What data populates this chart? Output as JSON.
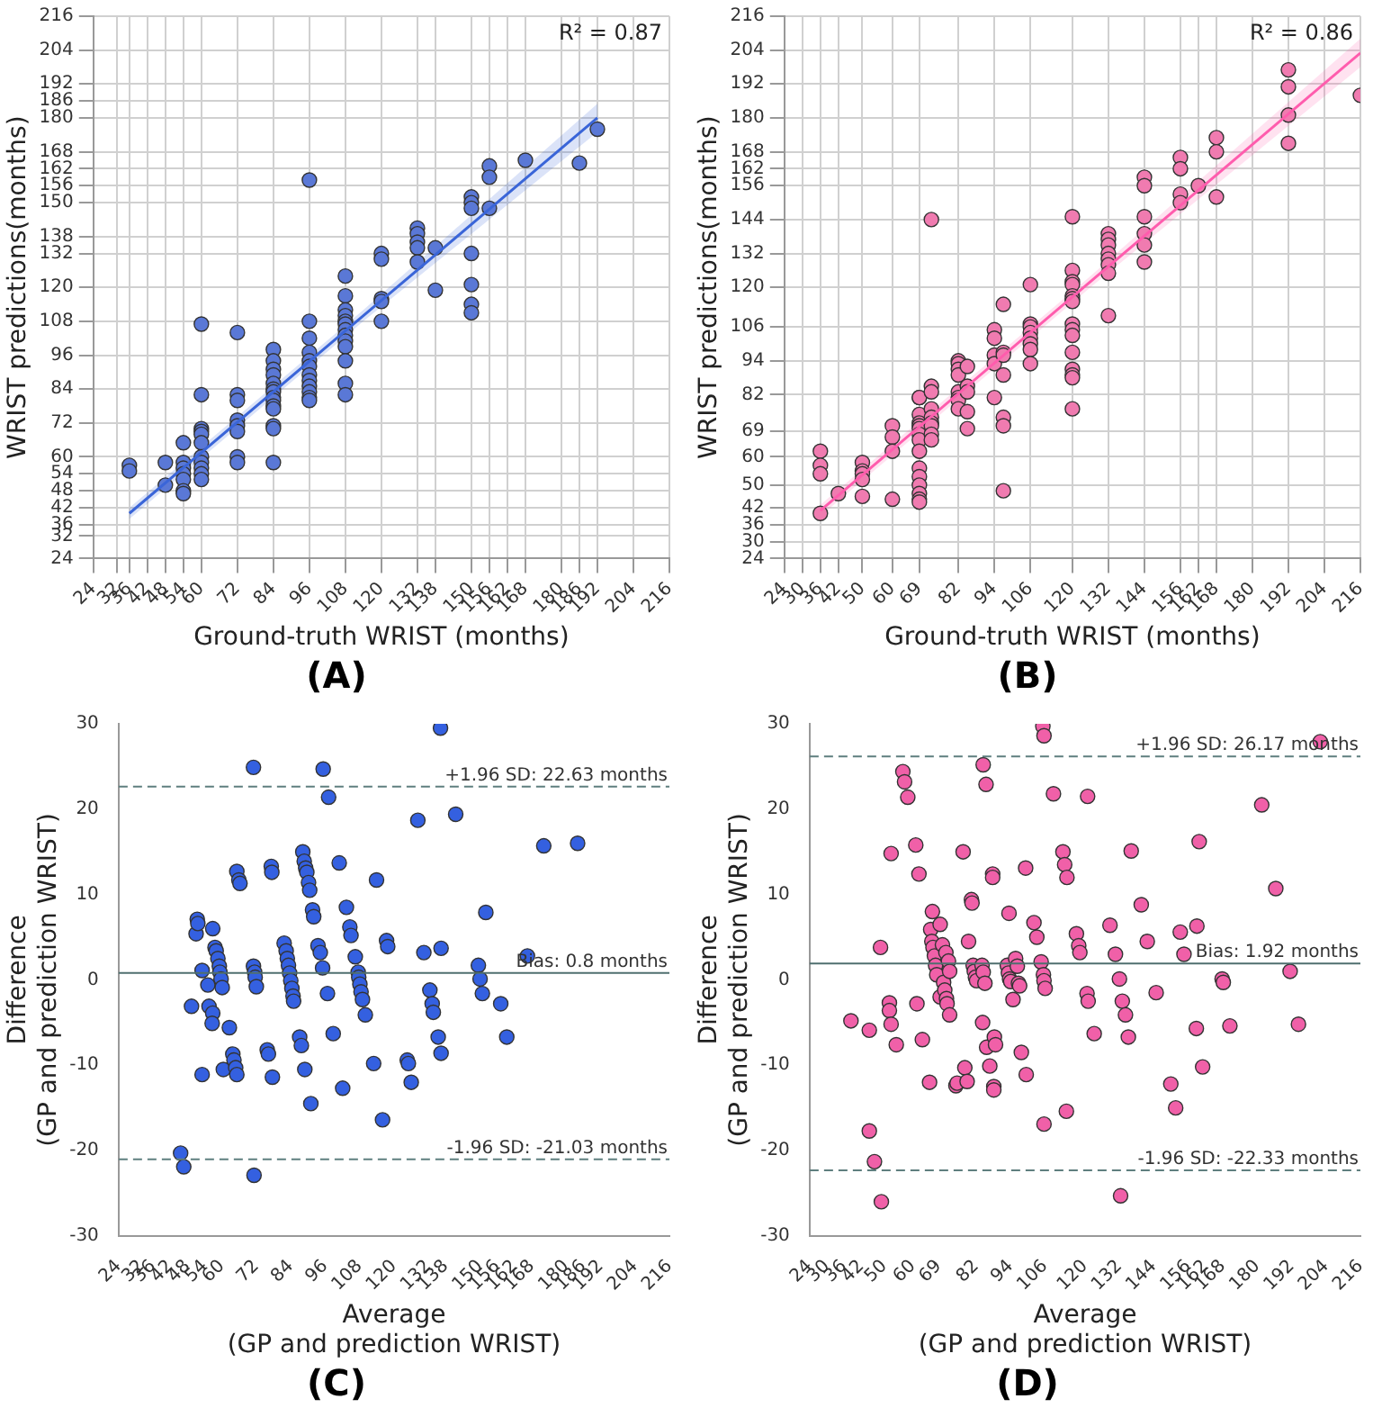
{
  "chart_data": [
    {
      "type": "scatter",
      "title": "(A)",
      "xlabel": "Ground-truth WRIST (months)",
      "ylabel": "WRIST predictions(months)",
      "annotations": [
        "R² = 0.87"
      ],
      "xlim": [
        24,
        216
      ],
      "ylim": [
        24,
        216
      ],
      "xticks": [
        24,
        32,
        36,
        42,
        48,
        54,
        60,
        72,
        84,
        96,
        108,
        120,
        132,
        138,
        150,
        156,
        162,
        168,
        180,
        186,
        192,
        204,
        216
      ],
      "yticks": [
        24,
        32,
        36,
        42,
        48,
        54,
        60,
        72,
        84,
        96,
        108,
        120,
        132,
        138,
        150,
        156,
        162,
        168,
        180,
        186,
        192,
        204,
        216
      ],
      "grid": true,
      "series": [
        {
          "marker": "circle",
          "color": "#5a78d6",
          "x": [
            36,
            36,
            48,
            48,
            54,
            54,
            54,
            54,
            54,
            54,
            54,
            60,
            60,
            60,
            60,
            60,
            60,
            60,
            60,
            60,
            60,
            60,
            72,
            72,
            72,
            72,
            72,
            72,
            72,
            72,
            84,
            84,
            84,
            84,
            84,
            84,
            84,
            84,
            84,
            84,
            84,
            84,
            84,
            84,
            96,
            96,
            96,
            96,
            96,
            96,
            96,
            96,
            96,
            96,
            96,
            96,
            108,
            108,
            108,
            108,
            108,
            108,
            108,
            108,
            108,
            108,
            108,
            108,
            108,
            120,
            120,
            120,
            120,
            120,
            132,
            132,
            132,
            132,
            132,
            138,
            138,
            150,
            150,
            150,
            150,
            150,
            150,
            150,
            156,
            156,
            156,
            168,
            186,
            192
          ],
          "values": [
            57,
            55,
            58,
            50,
            65,
            58,
            56,
            54,
            52,
            48,
            47,
            107,
            82,
            70,
            69,
            68,
            65,
            60,
            58,
            56,
            54,
            52,
            104,
            82,
            80,
            73,
            71,
            69,
            60,
            58,
            98,
            94,
            91,
            89,
            86,
            84,
            83,
            81,
            80,
            78,
            77,
            71,
            70,
            58,
            158,
            108,
            102,
            97,
            94,
            92,
            89,
            87,
            85,
            83,
            81,
            80,
            124,
            117,
            112,
            110,
            108,
            107,
            105,
            103,
            101,
            99,
            94,
            86,
            82,
            132,
            130,
            116,
            115,
            108,
            141,
            139,
            136,
            134,
            129,
            134,
            119,
            152,
            150,
            148,
            132,
            121,
            114,
            111,
            163,
            159,
            148,
            165,
            164,
            176
          ]
        },
        {
          "type": "line",
          "marker": "none",
          "color": "#3a65d8",
          "x": [
            36,
            114,
            192
          ],
          "values": [
            40,
            110,
            180
          ],
          "lower": [
            38,
            108,
            175
          ],
          "upper": [
            42,
            112,
            185
          ]
        }
      ]
    },
    {
      "type": "scatter",
      "title": "(B)",
      "xlabel": "Ground-truth WRIST (months)",
      "ylabel": "WRIST predictions(months)",
      "annotations": [
        "R² = 0.86"
      ],
      "xlim": [
        24,
        216
      ],
      "ylim": [
        24,
        216
      ],
      "xticks": [
        24,
        30,
        36,
        42,
        50,
        60,
        69,
        82,
        94,
        106,
        120,
        132,
        144,
        156,
        162,
        168,
        180,
        192,
        204,
        216
      ],
      "yticks": [
        24,
        30,
        36,
        42,
        50,
        60,
        69,
        82,
        94,
        106,
        120,
        132,
        144,
        156,
        162,
        168,
        180,
        192,
        204,
        216
      ],
      "grid": true,
      "series": [
        {
          "marker": "circle",
          "color": "#f07bb0",
          "x": [
            36,
            36,
            36,
            36,
            42,
            50,
            50,
            50,
            50,
            50,
            60,
            60,
            60,
            60,
            69,
            69,
            69,
            69,
            69,
            69,
            69,
            69,
            69,
            69,
            69,
            69,
            69,
            69,
            69,
            73,
            73,
            73,
            73,
            73,
            73,
            73,
            73,
            73,
            82,
            82,
            82,
            82,
            82,
            82,
            82,
            82,
            85,
            85,
            85,
            85,
            85,
            94,
            94,
            94,
            94,
            94,
            97,
            97,
            97,
            97,
            97,
            97,
            97,
            106,
            106,
            106,
            106,
            106,
            106,
            106,
            106,
            120,
            120,
            120,
            120,
            120,
            120,
            120,
            120,
            120,
            120,
            120,
            120,
            120,
            120,
            120,
            132,
            132,
            132,
            132,
            132,
            132,
            132,
            132,
            144,
            144,
            144,
            144,
            144,
            144,
            156,
            156,
            156,
            156,
            162,
            168,
            168,
            168,
            192,
            192,
            192,
            192,
            216
          ],
          "values": [
            62,
            57,
            54,
            40,
            47,
            58,
            55,
            54,
            52,
            46,
            71,
            67,
            62,
            45,
            81,
            81,
            75,
            72,
            71,
            70,
            68,
            66,
            62,
            56,
            53,
            50,
            47,
            45,
            44,
            144,
            85,
            83,
            77,
            74,
            72,
            71,
            68,
            66,
            94,
            93,
            91,
            89,
            83,
            81,
            80,
            77,
            92,
            85,
            83,
            76,
            70,
            105,
            102,
            96,
            93,
            81,
            114,
            97,
            96,
            89,
            74,
            71,
            48,
            121,
            107,
            106,
            104,
            102,
            100,
            98,
            93,
            145,
            126,
            122,
            121,
            117,
            116,
            115,
            107,
            105,
            103,
            97,
            91,
            89,
            88,
            77,
            139,
            137,
            135,
            132,
            130,
            128,
            125,
            110,
            159,
            156,
            145,
            139,
            135,
            129,
            166,
            162,
            153,
            150,
            156,
            173,
            168,
            152,
            197,
            191,
            181,
            171,
            188
          ]
        },
        {
          "type": "line",
          "marker": "none",
          "color": "#ff5cad",
          "x": [
            36,
            126,
            216
          ],
          "values": [
            41,
            122,
            203
          ],
          "lower": [
            39,
            120,
            198
          ],
          "upper": [
            43,
            124,
            208
          ]
        }
      ]
    },
    {
      "type": "scatter",
      "title": "(C)",
      "xlabel": "Average\n(GP and prediction WRIST)",
      "ylabel": "Difference\n(GP and prediction WRIST)",
      "xlim": [
        24,
        216
      ],
      "ylim": [
        -30,
        30
      ],
      "xticks": [
        24,
        32,
        36,
        42,
        48,
        54,
        60,
        72,
        84,
        96,
        108,
        120,
        132,
        138,
        150,
        156,
        162,
        168,
        180,
        186,
        192,
        204,
        216
      ],
      "yticks": [
        -30,
        -20,
        -10,
        0,
        10,
        20,
        30
      ],
      "ref_lines": [
        {
          "axis": "y",
          "value": 22.63,
          "label": "+1.96 SD: 22.63 months",
          "color": "#5f7f7f",
          "line_style": "dashed"
        },
        {
          "axis": "y",
          "value": 0.8,
          "label": "Bias: 0.8 months",
          "color": "#4f6f6f",
          "line_style": "solid"
        },
        {
          "axis": "y",
          "value": -21.03,
          "label": "-1.96 SD: -21.03 months",
          "color": "#5f7f7f",
          "line_style": "dashed"
        }
      ],
      "series": [
        {
          "marker": "circle",
          "color": "#3460e0",
          "x": [
            45.6,
            46.7,
            49.4,
            51,
            51.4,
            51.6,
            53.1,
            53.1,
            55.1,
            55.5,
            56.8,
            56.8,
            56.6,
            57.6,
            58,
            58.6,
            59.1,
            59.3,
            59.7,
            60.1,
            60.5,
            62.6,
            63.8,
            64.2,
            64.8,
            65.2,
            65.2,
            65.9,
            66.3,
            71,
            71,
            71.4,
            71.6,
            72,
            71.2,
            75.8,
            76.2,
            77.2,
            77.4,
            77.6,
            81.7,
            82.4,
            82.8,
            83.2,
            83.6,
            84,
            84.4,
            84.8,
            85,
            87.1,
            87.7,
            88.2,
            88.7,
            89.2,
            89.6,
            90.2,
            90.6,
            88.9,
            91,
            91.6,
            92,
            93.5,
            94.3,
            95.3,
            95.1,
            96.8,
            97.2,
            98.8,
            100.9,
            102.1,
            103.4,
            104.6,
            105,
            106.5,
            107.5,
            107.7,
            108.1,
            108.5,
            109,
            110,
            112.9,
            113.9,
            116,
            117.4,
            117.8,
            124.6,
            125,
            126,
            128.3,
            130.4,
            132.5,
            133.3,
            133.7,
            135.4,
            136.2,
            136.4,
            136.4,
            141.5,
            149.4,
            150,
            150.8,
            152,
            157.2,
            159.3,
            166.5,
            172.2,
            184
          ],
          "values": [
            -20.3,
            -21.9,
            -3.1,
            5.4,
            7.1,
            6.6,
            1.1,
            -11.1,
            -0.6,
            -3.1,
            6,
            -3.9,
            -5.1,
            3.8,
            3.4,
            2.5,
            1.6,
            0.9,
            0.1,
            -0.9,
            -10.5,
            -5.6,
            -8.7,
            -9.4,
            -10.3,
            -11.1,
            12.7,
            11.7,
            11.3,
            24.9,
            1.6,
            0.9,
            0.3,
            -0.8,
            -22.9,
            -8.2,
            -8.7,
            13.3,
            12.6,
            -11.4,
            4.3,
            3.4,
            2.5,
            1.7,
            0.8,
            -0.1,
            -1,
            -1.9,
            -2.5,
            -6.7,
            -7.7,
            15,
            13.9,
            13.1,
            12.6,
            11.4,
            10.5,
            -10.5,
            -14.5,
            8.2,
            7.4,
            4,
            3.2,
            24.7,
            1.4,
            -1.6,
            21.4,
            -6.3,
            13.7,
            -12.7,
            8.5,
            6.2,
            5.2,
            2.7,
            0.9,
            0.3,
            -0.5,
            -1.4,
            -2.3,
            -4.1,
            -9.8,
            11.7,
            -16.4,
            4.6,
            3.9,
            -9.4,
            -9.8,
            -12,
            18.7,
            3.2,
            -1.2,
            -2.8,
            -3.8,
            -6.7,
            29.5,
            3.7,
            -8.6,
            19.4,
            1.7,
            0.1,
            -1.6,
            7.9,
            -2.8,
            -6.7,
            2.8,
            15.7,
            16
          ]
        }
      ]
    },
    {
      "type": "scatter",
      "title": "(D)",
      "xlabel": "Average\n(GP and prediction WRIST)",
      "ylabel": "Difference\n(GP and prediction WRIST)",
      "xlim": [
        24,
        216
      ],
      "ylim": [
        -30,
        30
      ],
      "xticks": [
        24,
        30,
        36,
        42,
        50,
        60,
        69,
        82,
        94,
        106,
        120,
        132,
        144,
        156,
        162,
        168,
        180,
        192,
        204,
        216
      ],
      "yticks": [
        -30,
        -20,
        -10,
        0,
        10,
        20,
        30
      ],
      "ref_lines": [
        {
          "axis": "y",
          "value": 26.17,
          "label": "+1.96 SD: 26.17 months",
          "color": "#5f7f7f",
          "line_style": "dashed"
        },
        {
          "axis": "y",
          "value": 1.92,
          "label": "Bias: 1.92 months",
          "color": "#4f6f6f",
          "line_style": "solid"
        },
        {
          "axis": "y",
          "value": -22.33,
          "label": "-1.96 SD: -22.33 months",
          "color": "#5f7f7f",
          "line_style": "dashed"
        }
      ],
      "series": [
        {
          "marker": "circle",
          "color": "#f060a8",
          "x": [
            38.4,
            44.8,
            44.8,
            46.6,
            48.7,
            49,
            51.8,
            51.8,
            52.4,
            52.4,
            54.2,
            56.5,
            57.1,
            58.2,
            61,
            61.4,
            62.1,
            63.3,
            65.8,
            66.2,
            66.8,
            66.6,
            67,
            67.5,
            67.9,
            68.3,
            69.5,
            69.5,
            70.3,
            70.7,
            71.1,
            71.5,
            71.7,
            71.9,
            72.4,
            72.8,
            72.8,
            75,
            75.4,
            77.5,
            78.1,
            78.9,
            79.4,
            80.4,
            80.6,
            81,
            81.4,
            81.8,
            82.2,
            84.1,
            84.5,
            85.1,
            84.3,
            84.5,
            85.5,
            85.7,
            86.8,
            87.8,
            87.8,
            88.4,
            88.8,
            88.2,
            88.2,
            92.9,
            93.3,
            93.7,
            94.1,
            93.5,
            94.9,
            95.8,
            96.4,
            96.8,
            97.2,
            97.8,
            99.3,
            99.5,
            102.2,
            103.2,
            104.7,
            105.3,
            105.7,
            105.5,
            105.7,
            106.1,
            105.7,
            109,
            112.3,
            112.9,
            113.7,
            113.5,
            117,
            117.8,
            118.2,
            120.7,
            121.1,
            120.9,
            123.2,
            128.7,
            130.6,
            132,
            133,
            134.1,
            135.1,
            136.1,
            132.4,
            139.6,
            141.7,
            144.8,
            149.9,
            151.6,
            153.2,
            154.5,
            158.8,
            159,
            159.8,
            161,
            167.8,
            168.2,
            170.5,
            181.6,
            186.5,
            191.5,
            194.4,
            202
          ],
          "values": [
            -4.8,
            -5.9,
            -17.7,
            -21.3,
            3.8,
            -26,
            -2.7,
            -3.6,
            -5.2,
            14.8,
            -7.6,
            24.4,
            23.2,
            21.4,
            15.8,
            -2.8,
            12.4,
            -7,
            -12,
            5.9,
            8,
            4.5,
            3.8,
            2.8,
            1.7,
            0.6,
            6.5,
            -2,
            4.1,
            -0.3,
            -1.2,
            3.2,
            -2.2,
            -2.8,
            2.2,
            1,
            -4.1,
            -12.4,
            -12.1,
            15,
            -10.3,
            -11.9,
            4.5,
            9.4,
            9,
            1.7,
            1,
            0.3,
            -0.1,
            1.7,
            0.9,
            -0.4,
            -5,
            25.2,
            22.9,
            -7.9,
            -10.1,
            12.4,
            12,
            -6.7,
            -7.6,
            -12.5,
            -12.9,
            1.7,
            0.8,
            0.1,
            -0.2,
            7.8,
            -2.3,
            2.5,
            1.6,
            -0.4,
            -0.7,
            -8.5,
            13.1,
            -11.1,
            6.7,
            5,
            2.1,
            29.7,
            28.6,
            0.6,
            -0.1,
            -1,
            -16.9,
            21.8,
            15,
            13.5,
            12,
            -15.4,
            5.4,
            4,
            3.2,
            -1.6,
            -2.5,
            21.5,
            -6.3,
            6.4,
            3,
            0.1,
            -2.5,
            -4.1,
            -6.7,
            15.1,
            -25.3,
            8.8,
            4.5,
            -1.5,
            -12.2,
            -15,
            5.6,
            3,
            -5.7,
            6.3,
            16.2,
            -10.2,
            0.1,
            -0.3,
            -5.4,
            20.5,
            10.7,
            1,
            -5.2,
            27.9
          ]
        }
      ]
    }
  ]
}
